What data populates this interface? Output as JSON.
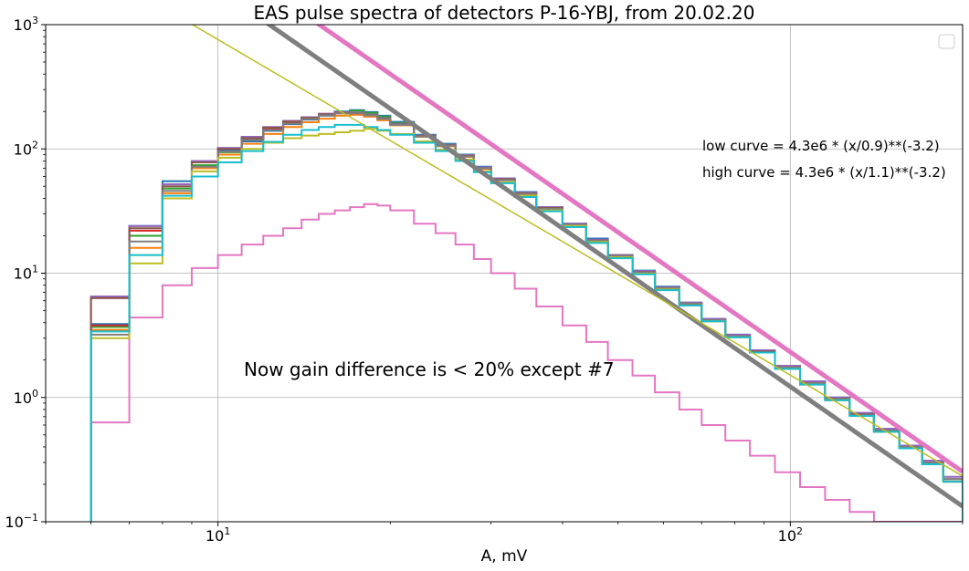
{
  "chart_data": {
    "type": "line",
    "title": "EAS pulse spectra of detectors P-16-YBJ, from 20.02.20",
    "xlabel": "A, mV",
    "ylabel": "",
    "xscale": "log",
    "yscale": "log",
    "xlim": [
      5.0,
      200.0
    ],
    "ylim": [
      0.1,
      1000
    ],
    "grid": true,
    "legend": "top-right (empty)",
    "x_ticks": [
      {
        "value": 10,
        "base": "10",
        "exp": "1"
      },
      {
        "value": 100,
        "base": "10",
        "exp": "2"
      }
    ],
    "y_ticks": [
      {
        "value": 0.1,
        "base": "10",
        "exp": "−1"
      },
      {
        "value": 1,
        "base": "10",
        "exp": "0"
      },
      {
        "value": 10,
        "base": "10",
        "exp": "1"
      },
      {
        "value": 100,
        "base": "10",
        "exp": "2"
      },
      {
        "value": 1000,
        "base": "10",
        "exp": "3"
      }
    ],
    "bin_edges": [
      6.0,
      7.0,
      8.0,
      9.0,
      10.0,
      11.0,
      12.0,
      13.0,
      14.0,
      15.0,
      16.0,
      17.0,
      18.0,
      19.0,
      20.0,
      22.0,
      24.0,
      26.0,
      28.0,
      30.0,
      33.0,
      36.0,
      40.0,
      44.0,
      48.0,
      53.0,
      58.0,
      64.0,
      70.0,
      77.0,
      85.0,
      94.0,
      104.0,
      115.0,
      127.0,
      140.0,
      155.0,
      170.0,
      185.0,
      200.0
    ],
    "series": [
      {
        "color": "#1f77b4",
        "values": [
          3.9,
          24,
          55,
          80,
          98,
          115,
          140,
          158,
          172,
          185,
          200,
          205,
          198,
          185,
          165,
          130,
          110,
          90,
          72,
          58,
          45,
          34,
          25,
          19,
          14,
          10.5,
          7.8,
          5.8,
          4.3,
          3.2,
          2.4,
          1.8,
          1.35,
          1.0,
          0.75,
          0.55,
          0.4,
          0.3,
          0.22
        ]
      },
      {
        "color": "#ff7f0e",
        "values": [
          3.5,
          16,
          44,
          70,
          90,
          110,
          132,
          150,
          164,
          175,
          185,
          188,
          182,
          170,
          155,
          125,
          105,
          86,
          69,
          56,
          43,
          33,
          24,
          18,
          13.5,
          10,
          7.5,
          5.6,
          4.1,
          3.1,
          2.3,
          1.7,
          1.3,
          0.95,
          0.72,
          0.53,
          0.39,
          0.29,
          0.21
        ]
      },
      {
        "color": "#2ca02c",
        "values": [
          3.7,
          20,
          48,
          74,
          94,
          118,
          142,
          160,
          175,
          188,
          198,
          203,
          195,
          182,
          162,
          128,
          108,
          89,
          71,
          57,
          44,
          34,
          25,
          18.5,
          14,
          10.3,
          7.7,
          5.7,
          4.2,
          3.1,
          2.35,
          1.75,
          1.3,
          0.98,
          0.73,
          0.54,
          0.4,
          0.3,
          0.22
        ]
      },
      {
        "color": "#d62728",
        "values": [
          3.8,
          22,
          52,
          78,
          100,
          122,
          146,
          164,
          178,
          190,
          196,
          195,
          188,
          176,
          158,
          127,
          107,
          88,
          70,
          57,
          44,
          33.5,
          24.5,
          18.3,
          13.8,
          10.2,
          7.6,
          5.7,
          4.2,
          3.1,
          2.35,
          1.75,
          1.3,
          0.98,
          0.73,
          0.54,
          0.4,
          0.3,
          0.22
        ]
      },
      {
        "color": "#9467bd",
        "values": [
          6.5,
          24,
          52,
          80,
          102,
          125,
          150,
          168,
          180,
          192,
          197,
          196,
          189,
          177,
          159,
          128,
          108,
          89,
          71,
          58,
          44.5,
          34,
          25,
          18.6,
          14,
          10.4,
          7.7,
          5.8,
          4.3,
          3.2,
          2.4,
          1.8,
          1.35,
          1.0,
          0.75,
          0.56,
          0.41,
          0.31,
          0.23
        ]
      },
      {
        "color": "#8c564b",
        "values": [
          6.3,
          23,
          50,
          78,
          100,
          122,
          148,
          166,
          178,
          190,
          195,
          194,
          187,
          175,
          157,
          127,
          107,
          88,
          70,
          57,
          44,
          33.5,
          24.5,
          18.3,
          13.8,
          10.2,
          7.6,
          5.7,
          4.2,
          3.1,
          2.35,
          1.75,
          1.3,
          0.98,
          0.73,
          0.54,
          0.4,
          0.3,
          0.22
        ]
      },
      {
        "color": "#e377c2",
        "values": [
          0.63,
          4.4,
          8,
          11,
          14,
          17,
          20,
          23,
          27,
          30,
          32,
          34,
          36,
          35,
          32,
          25,
          21,
          17,
          13,
          10,
          7.5,
          5.4,
          3.8,
          2.8,
          2.0,
          1.5,
          1.1,
          0.8,
          0.6,
          0.45,
          0.34,
          0.25,
          0.19,
          0.15,
          0.12,
          0.1,
          0.1,
          0.1,
          0.1
        ]
      },
      {
        "color": "#7f7f7f",
        "values": [
          3.2,
          18,
          46,
          72,
          95,
          118,
          142,
          160,
          174,
          186,
          193,
          193,
          186,
          174,
          156,
          126,
          106,
          87,
          70,
          56,
          43.5,
          33,
          24.5,
          18.2,
          13.7,
          10.1,
          7.6,
          5.7,
          4.2,
          3.1,
          2.3,
          1.75,
          1.3,
          0.97,
          0.72,
          0.54,
          0.4,
          0.3,
          0.22
        ]
      },
      {
        "color": "#bcbd22",
        "values": [
          3.0,
          12,
          40,
          66,
          85,
          100,
          112,
          122,
          128,
          132,
          136,
          140,
          145,
          140,
          132,
          115,
          98,
          82,
          66,
          54,
          42,
          32,
          24,
          17.8,
          13.4,
          9.9,
          7.4,
          5.5,
          4.1,
          3.05,
          2.3,
          1.7,
          1.27,
          0.95,
          0.71,
          0.53,
          0.39,
          0.29,
          0.21
        ]
      },
      {
        "color": "#17becf",
        "values": [
          3.4,
          14,
          42,
          60,
          78,
          96,
          114,
          130,
          142,
          150,
          156,
          156,
          150,
          142,
          130,
          112,
          96,
          80,
          65,
          53,
          41,
          31.5,
          23.5,
          17.5,
          13.2,
          9.8,
          7.3,
          5.5,
          4.1,
          3.05,
          2.3,
          1.7,
          1.27,
          0.95,
          0.71,
          0.53,
          0.39,
          0.29,
          0.21
        ]
      }
    ],
    "curves": [
      {
        "name": "low curve",
        "formula": "4.3e6 * (x/0.9)**(-3.2)",
        "color": "#7f7f7f",
        "width": 5,
        "amp": 4300000.0,
        "scale": 0.9,
        "exp": -3.2
      },
      {
        "name": "high curve",
        "formula": "4.3e6 * (x/1.1)**(-3.2)",
        "color": "#e377c2",
        "width": 5,
        "amp": 4300000.0,
        "scale": 1.1,
        "exp": -3.2
      },
      {
        "name": "",
        "formula": "",
        "color": "#bcbd22",
        "width": 1.5,
        "amp": 380000,
        "scale": 1.0,
        "exp": -2.7
      }
    ],
    "annotations": [
      {
        "text": "low curve = 4.3e6 * (x/0.9)**(-3.2)"
      },
      {
        "text": "high curve = 4.3e6 * (x/1.1)**(-3.2)"
      },
      {
        "text": "Now gain difference is < 20% except #7"
      }
    ]
  }
}
